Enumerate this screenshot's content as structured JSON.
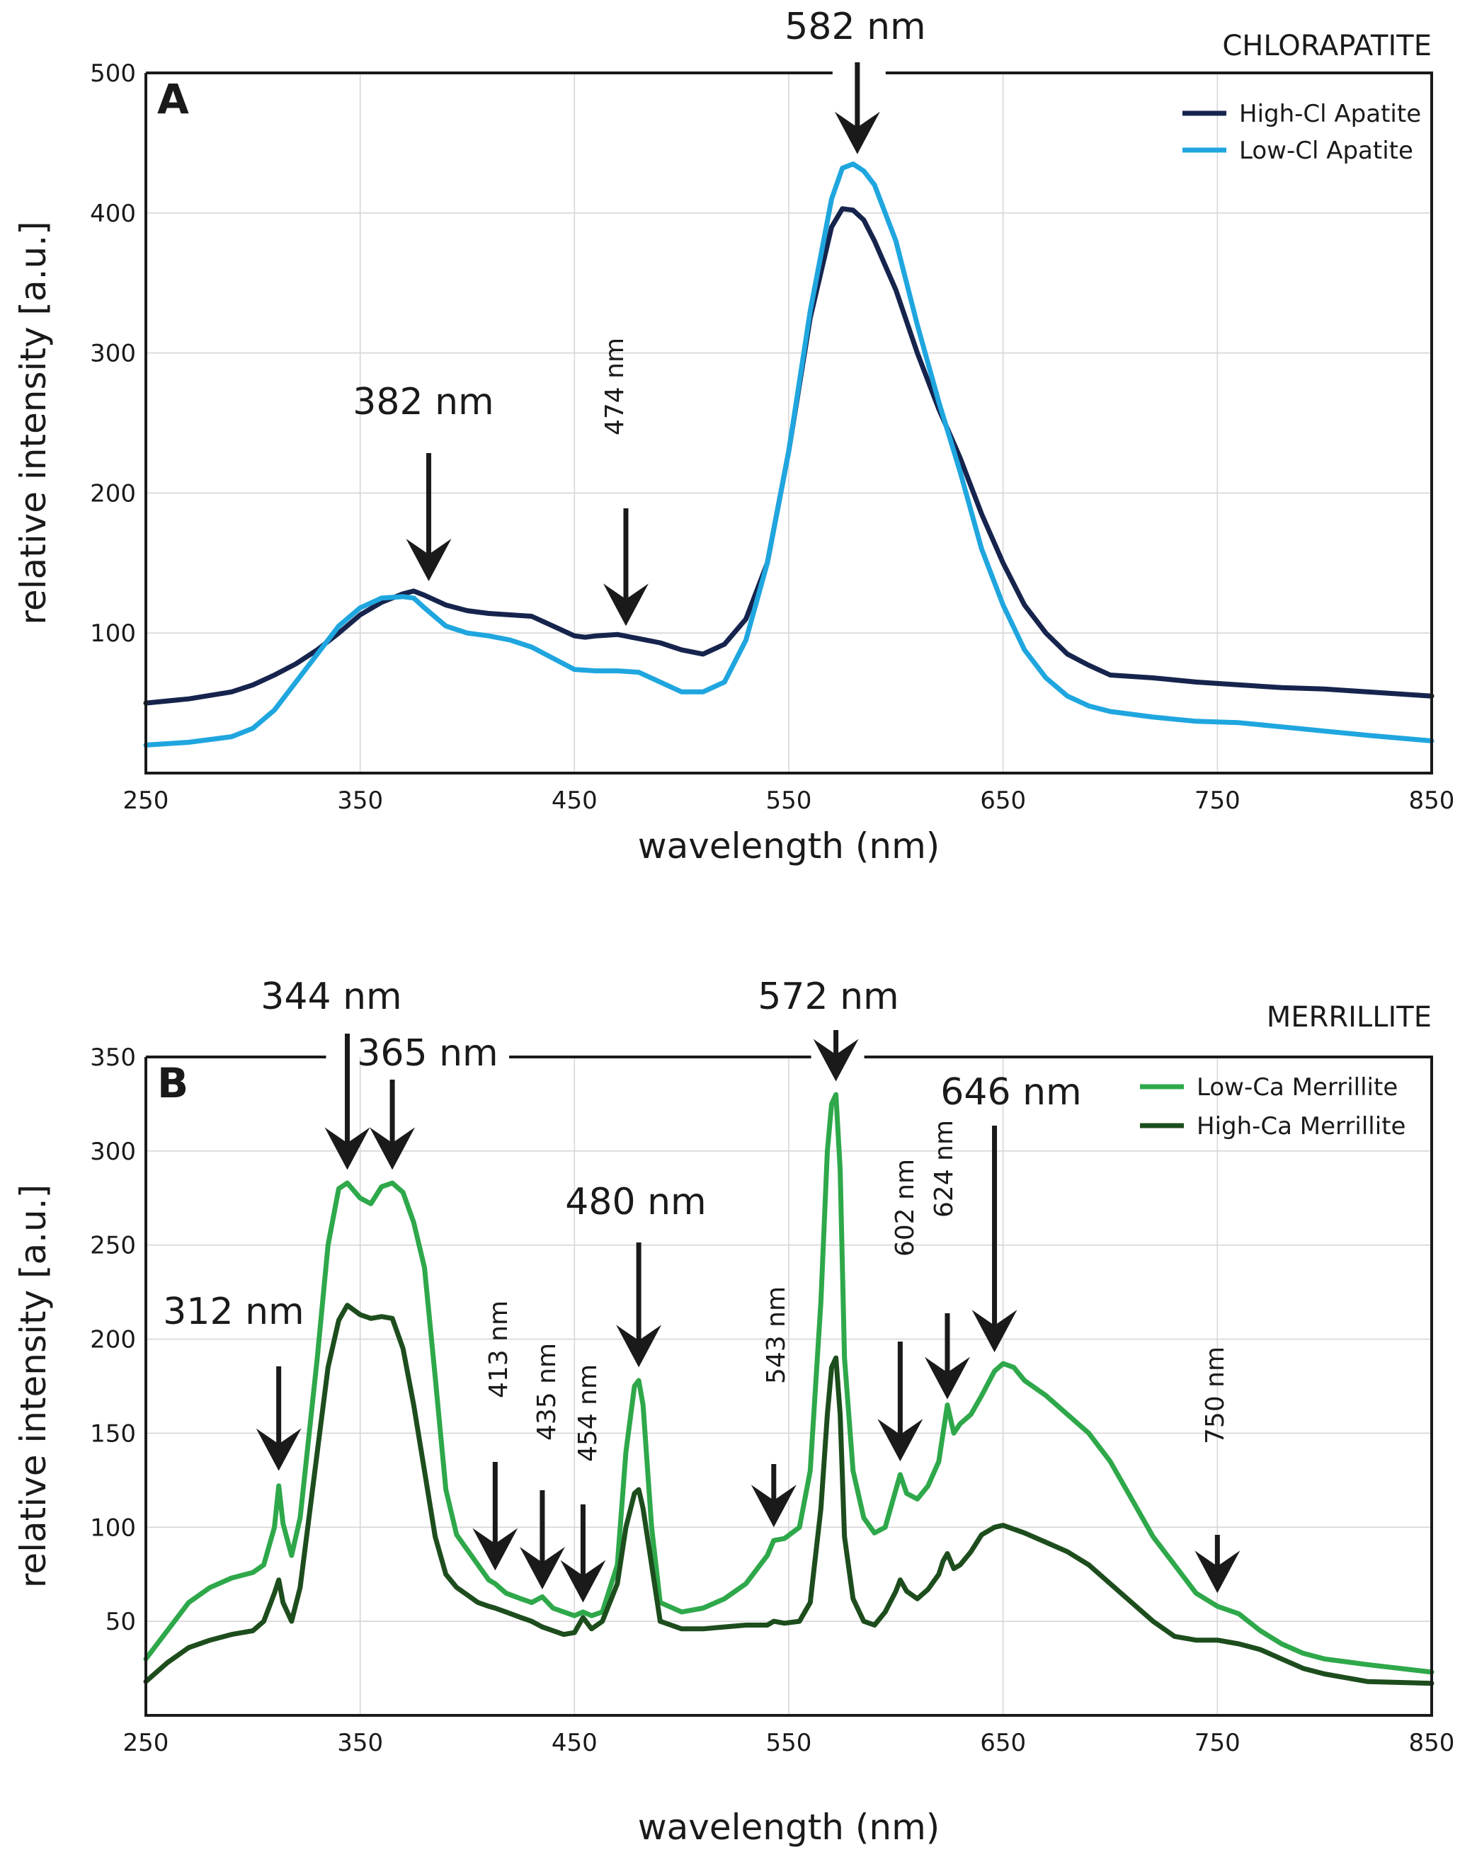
{
  "chart_data": [
    {
      "type": "line",
      "panel": "A",
      "mineral": "CHLORAPATITE",
      "xlabel": "wavelength (nm)",
      "ylabel": "relative intensity [a.u.]",
      "xlim": [
        250,
        850
      ],
      "ylim": [
        0,
        500
      ],
      "xticks": [
        250,
        350,
        450,
        550,
        650,
        750,
        850
      ],
      "yticks": [
        100,
        200,
        300,
        400,
        500
      ],
      "grid": true,
      "legend_position": "top-right",
      "series": [
        {
          "name": "High-Cl Apatite",
          "color": "#16244d",
          "x": [
            250,
            270,
            290,
            300,
            310,
            320,
            330,
            340,
            350,
            360,
            370,
            375,
            380,
            390,
            400,
            410,
            420,
            430,
            440,
            450,
            455,
            460,
            470,
            480,
            490,
            500,
            510,
            520,
            530,
            540,
            550,
            560,
            570,
            575,
            580,
            585,
            590,
            600,
            610,
            620,
            630,
            640,
            650,
            660,
            670,
            680,
            690,
            700,
            720,
            740,
            760,
            780,
            800,
            820,
            850
          ],
          "y": [
            50,
            53,
            58,
            63,
            70,
            78,
            88,
            100,
            113,
            122,
            128,
            130,
            127,
            120,
            116,
            114,
            113,
            112,
            105,
            98,
            97,
            98,
            99,
            96,
            93,
            88,
            85,
            92,
            110,
            150,
            230,
            325,
            390,
            403,
            402,
            395,
            380,
            345,
            300,
            260,
            225,
            185,
            150,
            120,
            100,
            85,
            77,
            70,
            68,
            65,
            63,
            61,
            60,
            58,
            55
          ]
        },
        {
          "name": "Low-Cl Apatite",
          "color": "#1fa6df",
          "x": [
            250,
            270,
            290,
            300,
            310,
            320,
            330,
            340,
            350,
            360,
            370,
            375,
            380,
            390,
            400,
            410,
            420,
            430,
            440,
            450,
            460,
            470,
            480,
            490,
            500,
            510,
            520,
            530,
            540,
            550,
            560,
            570,
            575,
            580,
            585,
            590,
            600,
            610,
            620,
            630,
            640,
            650,
            660,
            670,
            680,
            690,
            700,
            720,
            740,
            760,
            780,
            800,
            820,
            850
          ],
          "y": [
            20,
            22,
            26,
            32,
            45,
            65,
            85,
            105,
            118,
            125,
            126,
            125,
            118,
            105,
            100,
            98,
            95,
            90,
            82,
            74,
            73,
            73,
            72,
            65,
            58,
            58,
            65,
            95,
            150,
            230,
            330,
            410,
            432,
            435,
            430,
            420,
            380,
            320,
            265,
            215,
            160,
            120,
            88,
            68,
            55,
            48,
            44,
            40,
            37,
            36,
            33,
            30,
            27,
            23
          ]
        }
      ],
      "annotations": [
        {
          "label": "382 nm",
          "x": 382
        },
        {
          "label": "474 nm",
          "x": 474
        },
        {
          "label": "582 nm",
          "x": 582
        }
      ]
    },
    {
      "type": "line",
      "panel": "B",
      "mineral": "MERRILLITE",
      "xlabel": "wavelength (nm)",
      "ylabel": "relative intensity [a.u.]",
      "xlim": [
        250,
        850
      ],
      "ylim": [
        0,
        350
      ],
      "xticks": [
        250,
        350,
        450,
        550,
        650,
        750,
        850
      ],
      "yticks": [
        50,
        100,
        150,
        200,
        250,
        300,
        350
      ],
      "grid": true,
      "legend_position": "top-right",
      "series": [
        {
          "name": "Low-Ca Merrillite",
          "color": "#2ea84a",
          "x": [
            250,
            260,
            270,
            280,
            290,
            300,
            305,
            310,
            312,
            314,
            318,
            322,
            330,
            335,
            340,
            344,
            350,
            355,
            360,
            365,
            370,
            375,
            380,
            385,
            390,
            395,
            400,
            405,
            410,
            413,
            418,
            425,
            430,
            435,
            440,
            445,
            450,
            454,
            458,
            463,
            470,
            474,
            478,
            480,
            482,
            486,
            490,
            500,
            510,
            520,
            530,
            540,
            543,
            548,
            555,
            560,
            565,
            568,
            570,
            572,
            574,
            576,
            580,
            585,
            590,
            595,
            600,
            602,
            605,
            610,
            615,
            620,
            622,
            624,
            627,
            630,
            635,
            640,
            646,
            650,
            655,
            660,
            670,
            680,
            690,
            700,
            710,
            720,
            730,
            740,
            750,
            760,
            770,
            780,
            790,
            800,
            820,
            850
          ],
          "y": [
            30,
            45,
            60,
            68,
            73,
            76,
            80,
            100,
            122,
            102,
            85,
            105,
            190,
            250,
            280,
            283,
            275,
            272,
            281,
            283,
            278,
            262,
            238,
            180,
            120,
            96,
            88,
            80,
            72,
            70,
            65,
            62,
            60,
            63,
            57,
            55,
            53,
            55,
            53,
            55,
            80,
            140,
            175,
            178,
            165,
            100,
            60,
            55,
            57,
            62,
            70,
            85,
            93,
            94,
            100,
            130,
            220,
            300,
            325,
            330,
            290,
            190,
            130,
            105,
            97,
            100,
            120,
            128,
            118,
            115,
            122,
            135,
            150,
            165,
            150,
            155,
            160,
            170,
            183,
            187,
            185,
            178,
            170,
            160,
            150,
            135,
            115,
            95,
            80,
            65,
            58,
            54,
            45,
            38,
            33,
            30,
            27,
            23
          ]
        },
        {
          "name": "High-Ca Merrillite",
          "color": "#1d4d1d",
          "x": [
            250,
            260,
            270,
            280,
            290,
            300,
            305,
            310,
            312,
            314,
            318,
            322,
            330,
            335,
            340,
            344,
            350,
            355,
            360,
            365,
            370,
            375,
            380,
            385,
            390,
            395,
            400,
            405,
            410,
            413,
            418,
            425,
            430,
            435,
            440,
            445,
            450,
            454,
            458,
            463,
            470,
            474,
            478,
            480,
            482,
            486,
            490,
            500,
            510,
            520,
            530,
            540,
            543,
            548,
            555,
            560,
            565,
            568,
            570,
            572,
            574,
            576,
            580,
            585,
            590,
            595,
            600,
            602,
            605,
            610,
            615,
            620,
            622,
            624,
            627,
            630,
            635,
            640,
            646,
            650,
            655,
            660,
            670,
            680,
            690,
            700,
            710,
            720,
            730,
            740,
            750,
            760,
            770,
            780,
            790,
            800,
            820,
            850
          ],
          "y": [
            18,
            28,
            36,
            40,
            43,
            45,
            50,
            65,
            72,
            60,
            50,
            68,
            140,
            185,
            210,
            218,
            213,
            211,
            212,
            211,
            195,
            165,
            130,
            95,
            75,
            68,
            64,
            60,
            58,
            57,
            55,
            52,
            50,
            47,
            45,
            43,
            44,
            52,
            46,
            50,
            70,
            100,
            118,
            120,
            110,
            80,
            50,
            46,
            46,
            47,
            48,
            48,
            50,
            49,
            50,
            60,
            110,
            160,
            185,
            190,
            160,
            95,
            62,
            50,
            48,
            55,
            66,
            72,
            66,
            62,
            67,
            75,
            82,
            86,
            78,
            80,
            87,
            96,
            100,
            101,
            99,
            97,
            92,
            87,
            80,
            70,
            60,
            50,
            42,
            40,
            40,
            38,
            35,
            30,
            25,
            22,
            18,
            17
          ]
        }
      ],
      "annotations": [
        {
          "label": "312 nm",
          "x": 312
        },
        {
          "label": "344 nm",
          "x": 344
        },
        {
          "label": "365 nm",
          "x": 365
        },
        {
          "label": "413 nm",
          "x": 413
        },
        {
          "label": "435 nm",
          "x": 435
        },
        {
          "label": "454 nm",
          "x": 454
        },
        {
          "label": "480 nm",
          "x": 480
        },
        {
          "label": "543 nm",
          "x": 543
        },
        {
          "label": "572 nm",
          "x": 572
        },
        {
          "label": "602 nm",
          "x": 602
        },
        {
          "label": "624 nm",
          "x": 624
        },
        {
          "label": "646 nm",
          "x": 646
        },
        {
          "label": "750 nm",
          "x": 750
        }
      ]
    }
  ]
}
